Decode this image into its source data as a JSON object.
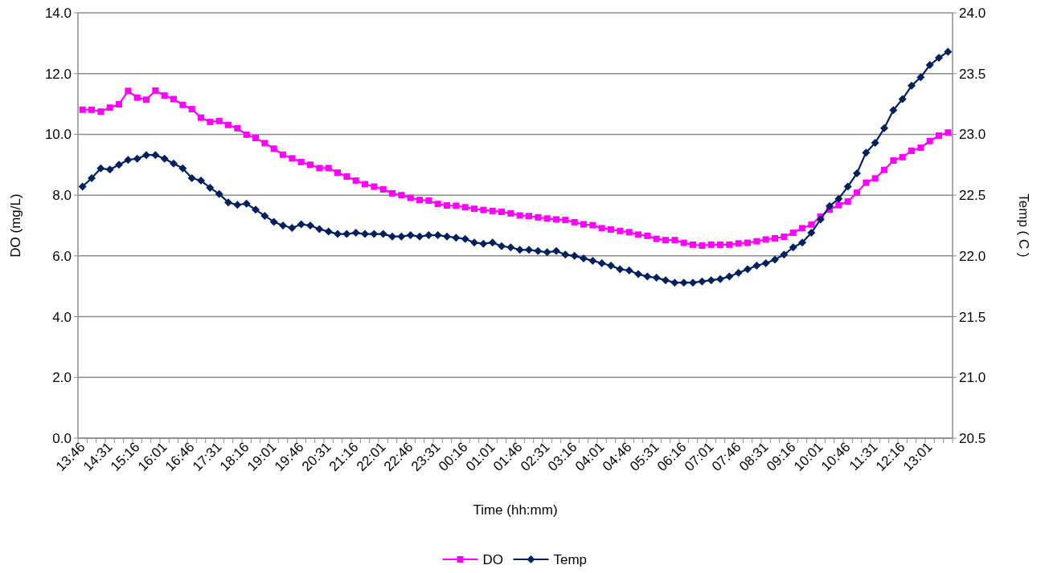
{
  "chart_data": {
    "type": "line",
    "xlabel": "Time (hh:mm)",
    "ylabel": "DO (mg/L)",
    "y2label": "Temp ( C )",
    "categories": [
      "13:46",
      null,
      null,
      "14:31",
      null,
      null,
      "15:16",
      null,
      null,
      "16:01",
      null,
      null,
      "16:46",
      null,
      null,
      "17:31",
      null,
      null,
      "18:16",
      null,
      null,
      "19:01",
      null,
      null,
      "19:46",
      null,
      null,
      "20:31",
      null,
      null,
      "21:16",
      null,
      null,
      "22:01",
      null,
      null,
      "22:46",
      null,
      null,
      "23:31",
      null,
      null,
      "00:16",
      null,
      null,
      "01:01",
      null,
      null,
      "01:46",
      null,
      null,
      "02:31",
      null,
      null,
      "03:16",
      null,
      null,
      "04:01",
      null,
      null,
      "04:46",
      null,
      null,
      "05:31",
      null,
      null,
      "06:16",
      null,
      null,
      "07:01",
      null,
      null,
      "07:46",
      null,
      null,
      "08:31",
      null,
      null,
      "09:16",
      null,
      null,
      "10:01",
      null,
      null,
      "10:46",
      null,
      null,
      "11:31",
      null,
      null,
      "12:16",
      null,
      null,
      "13:01",
      null,
      null
    ],
    "series": [
      {
        "name": "DO",
        "color": "#ff00ff",
        "marker": "square",
        "values": [
          10.81,
          10.81,
          10.75,
          10.88,
          10.99,
          11.43,
          11.21,
          11.14,
          11.44,
          11.28,
          11.16,
          10.97,
          10.83,
          10.55,
          10.41,
          10.44,
          10.31,
          10.2,
          9.99,
          9.88,
          9.71,
          9.53,
          9.33,
          9.21,
          9.09,
          9.0,
          8.89,
          8.89,
          8.74,
          8.61,
          8.48,
          8.36,
          8.28,
          8.19,
          8.06,
          8.0,
          7.91,
          7.84,
          7.82,
          7.71,
          7.66,
          7.65,
          7.6,
          7.55,
          7.51,
          7.48,
          7.45,
          7.4,
          7.33,
          7.31,
          7.27,
          7.23,
          7.2,
          7.18,
          7.11,
          7.04,
          7.01,
          6.91,
          6.87,
          6.82,
          6.78,
          6.7,
          6.66,
          6.56,
          6.52,
          6.52,
          6.43,
          6.37,
          6.34,
          6.37,
          6.37,
          6.37,
          6.41,
          6.43,
          6.48,
          6.54,
          6.58,
          6.63,
          6.76,
          6.91,
          7.03,
          7.29,
          7.53,
          7.67,
          7.79,
          8.08,
          8.41,
          8.55,
          8.83,
          9.14,
          9.25,
          9.46,
          9.56,
          9.78,
          9.96,
          10.06
        ]
      },
      {
        "name": "Temp",
        "color": "#00205f",
        "marker": "diamond",
        "axis": "y2",
        "values": [
          22.57,
          22.64,
          22.72,
          22.71,
          22.75,
          22.79,
          22.8,
          22.83,
          22.83,
          22.8,
          22.76,
          22.72,
          22.64,
          22.62,
          22.56,
          22.51,
          22.44,
          22.42,
          22.43,
          22.38,
          22.33,
          22.28,
          22.25,
          22.23,
          22.26,
          22.25,
          22.22,
          22.2,
          22.18,
          22.18,
          22.19,
          22.18,
          22.18,
          22.18,
          22.16,
          22.16,
          22.17,
          22.16,
          22.17,
          22.17,
          22.16,
          22.15,
          22.14,
          22.11,
          22.1,
          22.11,
          22.08,
          22.07,
          22.05,
          22.05,
          22.04,
          22.03,
          22.04,
          22.01,
          22.0,
          21.98,
          21.96,
          21.94,
          21.92,
          21.89,
          21.88,
          21.85,
          21.83,
          21.82,
          21.8,
          21.78,
          21.78,
          21.78,
          21.79,
          21.8,
          21.81,
          21.83,
          21.86,
          21.89,
          21.92,
          21.94,
          21.97,
          22.01,
          22.07,
          22.11,
          22.19,
          22.3,
          22.41,
          22.47,
          22.57,
          22.68,
          22.85,
          22.93,
          23.05,
          23.2,
          23.29,
          23.4,
          23.47,
          23.57,
          23.63,
          23.68
        ]
      }
    ],
    "ylim": [
      0,
      14
    ],
    "yticks": [
      {
        "value": 0,
        "label": "0.0"
      },
      {
        "value": 2,
        "label": "2.0"
      },
      {
        "value": 4,
        "label": "4.0"
      },
      {
        "value": 6,
        "label": "6.0"
      },
      {
        "value": 8,
        "label": "8.0"
      },
      {
        "value": 10,
        "label": "10.0"
      },
      {
        "value": 12,
        "label": "12.0"
      },
      {
        "value": 14,
        "label": "14.0"
      }
    ],
    "y2lim": [
      20.5,
      24
    ],
    "y2ticks": [
      20.5,
      {
        "value": 21,
        "label": "21.0"
      },
      21.5,
      {
        "value": 22,
        "label": "22.0"
      },
      22.5,
      {
        "value": 23,
        "label": "23.0"
      },
      23.5,
      {
        "value": 24,
        "label": "24.0"
      }
    ],
    "grid": "y",
    "legend": "bottom",
    "line_style": "solid"
  }
}
